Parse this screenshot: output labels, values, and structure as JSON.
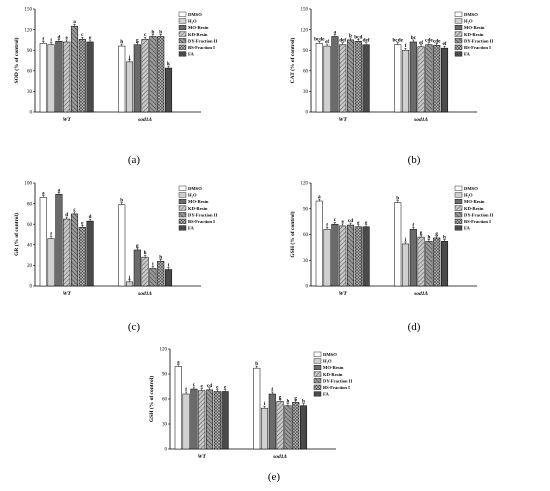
{
  "legend": [
    "DMSO",
    "H₂O",
    "MO-Resin",
    "KD-Resin",
    "DY-Fraction II",
    "BS-Fraction I",
    "FA"
  ],
  "series_styles": [
    {
      "fill": "#ffffff",
      "pattern": "none"
    },
    {
      "fill": "#d0d0d0",
      "pattern": "none"
    },
    {
      "fill": "#6b6b6b",
      "pattern": "none"
    },
    {
      "fill": "#b5b5b5",
      "pattern": "hatch"
    },
    {
      "fill": "#8a8a8a",
      "pattern": "hatch2"
    },
    {
      "fill": "#a0a0a0",
      "pattern": "cross"
    },
    {
      "fill": "#4a4a4a",
      "pattern": "none"
    }
  ],
  "chart_data": [
    {
      "type": "bar",
      "panel": "(a)",
      "ylabel": "SOD (% of control)",
      "categories": [
        "WT",
        "sod1Δ"
      ],
      "ylim": [
        0,
        150
      ],
      "yticks": [
        0,
        30,
        60,
        90,
        120,
        150
      ],
      "series": [
        {
          "name": "DMSO",
          "values": [
            100,
            96
          ],
          "letters": [
            "f",
            "h"
          ]
        },
        {
          "name": "H₂O",
          "values": [
            98,
            73
          ],
          "letters": [
            "i",
            "j"
          ]
        },
        {
          "name": "MO-Resin",
          "values": [
            103,
            98
          ],
          "letters": [
            "d",
            "g"
          ]
        },
        {
          "name": "KD-Resin",
          "values": [
            102,
            106
          ],
          "letters": [
            "e",
            "c"
          ]
        },
        {
          "name": "DY-Fraction II",
          "values": [
            125,
            110
          ],
          "letters": [
            "a",
            "b"
          ]
        },
        {
          "name": "BS-Fraction I",
          "values": [
            106,
            110
          ],
          "letters": [
            "c",
            "b"
          ]
        },
        {
          "name": "FA",
          "values": [
            102,
            64
          ],
          "letters": [
            "e",
            "k"
          ]
        }
      ]
    },
    {
      "type": "bar",
      "panel": "(b)",
      "ylabel": "CAT (% of control)",
      "categories": [
        "WT",
        "sod1Δ"
      ],
      "ylim": [
        0,
        150
      ],
      "yticks": [
        0,
        30,
        60,
        90,
        120,
        150
      ],
      "series": [
        {
          "name": "DMSO",
          "values": [
            100,
            98
          ],
          "letters": [
            "bcde",
            "bcde"
          ]
        },
        {
          "name": "H₂O",
          "values": [
            96,
            90
          ],
          "letters": [
            "ef",
            "f"
          ]
        },
        {
          "name": "MO-Resin",
          "values": [
            110,
            102
          ],
          "letters": [
            "a",
            "bc"
          ]
        },
        {
          "name": "KD-Resin",
          "values": [
            98,
            95
          ],
          "letters": [
            "def",
            "ef"
          ]
        },
        {
          "name": "DY-Fraction II",
          "values": [
            105,
            98
          ],
          "letters": [
            "b",
            "cde"
          ]
        },
        {
          "name": "BS-Fraction I",
          "values": [
            103,
            97
          ],
          "letters": [
            "bcd",
            "cde"
          ]
        },
        {
          "name": "FA",
          "values": [
            98,
            93
          ],
          "letters": [
            "def",
            "ef"
          ]
        }
      ]
    },
    {
      "type": "bar",
      "panel": "(c)",
      "ylabel": "GR (% of control)",
      "categories": [
        "WT",
        "sod1Δ"
      ],
      "ylim": [
        0,
        100
      ],
      "yticks": [
        0,
        20,
        40,
        60,
        80,
        100
      ],
      "series": [
        {
          "name": "DMSO",
          "values": [
            86,
            79
          ],
          "letters": [
            "a",
            "b"
          ]
        },
        {
          "name": "H₂O",
          "values": [
            46,
            4
          ],
          "letters": [
            "f",
            "j"
          ]
        },
        {
          "name": "MO-Resin",
          "values": [
            89,
            35
          ],
          "letters": [
            "a",
            "g"
          ]
        },
        {
          "name": "KD-Resin",
          "values": [
            65,
            28
          ],
          "letters": [
            "d",
            "h"
          ]
        },
        {
          "name": "DY-Fraction II",
          "values": [
            70,
            17
          ],
          "letters": [
            "c",
            "i"
          ]
        },
        {
          "name": "BS-Fraction I",
          "values": [
            57,
            24
          ],
          "letters": [
            "e",
            "h"
          ]
        },
        {
          "name": "FA",
          "values": [
            63,
            16
          ],
          "letters": [
            "d",
            "i"
          ]
        }
      ]
    },
    {
      "type": "bar",
      "panel": "(d)",
      "ylabel": "GSH (% of control)",
      "categories": [
        "WT",
        "sod1Δ"
      ],
      "ylim": [
        0,
        120
      ],
      "yticks": [
        0,
        30,
        60,
        90,
        120
      ],
      "series": [
        {
          "name": "DMSO",
          "values": [
            99,
            97
          ],
          "letters": [
            "a",
            "b"
          ]
        },
        {
          "name": "H₂O",
          "values": [
            66,
            49
          ],
          "letters": [
            "f",
            "i"
          ]
        },
        {
          "name": "MO-Resin",
          "values": [
            72,
            66
          ],
          "letters": [
            "c",
            "f"
          ]
        },
        {
          "name": "KD-Resin",
          "values": [
            70,
            57
          ],
          "letters": [
            "e",
            "g"
          ]
        },
        {
          "name": "DY-Fraction II",
          "values": [
            71,
            52
          ],
          "letters": [
            "cd",
            "h"
          ]
        },
        {
          "name": "BS-Fraction I",
          "values": [
            69,
            56
          ],
          "letters": [
            "e",
            "g"
          ]
        },
        {
          "name": "FA",
          "values": [
            69,
            52
          ],
          "letters": [
            "e",
            "h"
          ]
        }
      ]
    },
    {
      "type": "bar",
      "panel": "(e)",
      "ylabel": "GSH (% of control)",
      "categories": [
        "WT",
        "sod1Δ"
      ],
      "ylim": [
        0,
        120
      ],
      "yticks": [
        0,
        30,
        60,
        90,
        120
      ],
      "series": [
        {
          "name": "DMSO",
          "values": [
            99,
            97
          ],
          "letters": [
            "a",
            "b"
          ]
        },
        {
          "name": "H₂O",
          "values": [
            66,
            49
          ],
          "letters": [
            "f",
            "i"
          ]
        },
        {
          "name": "MO-Resin",
          "values": [
            72,
            66
          ],
          "letters": [
            "c",
            "f"
          ]
        },
        {
          "name": "KD-Resin",
          "values": [
            70,
            57
          ],
          "letters": [
            "e",
            "g"
          ]
        },
        {
          "name": "DY-Fraction II",
          "values": [
            71,
            52
          ],
          "letters": [
            "cd",
            "h"
          ]
        },
        {
          "name": "BS-Fraction I",
          "values": [
            69,
            56
          ],
          "letters": [
            "e",
            "g"
          ]
        },
        {
          "name": "FA",
          "values": [
            69,
            52
          ],
          "letters": [
            "e",
            "h"
          ]
        }
      ]
    }
  ]
}
